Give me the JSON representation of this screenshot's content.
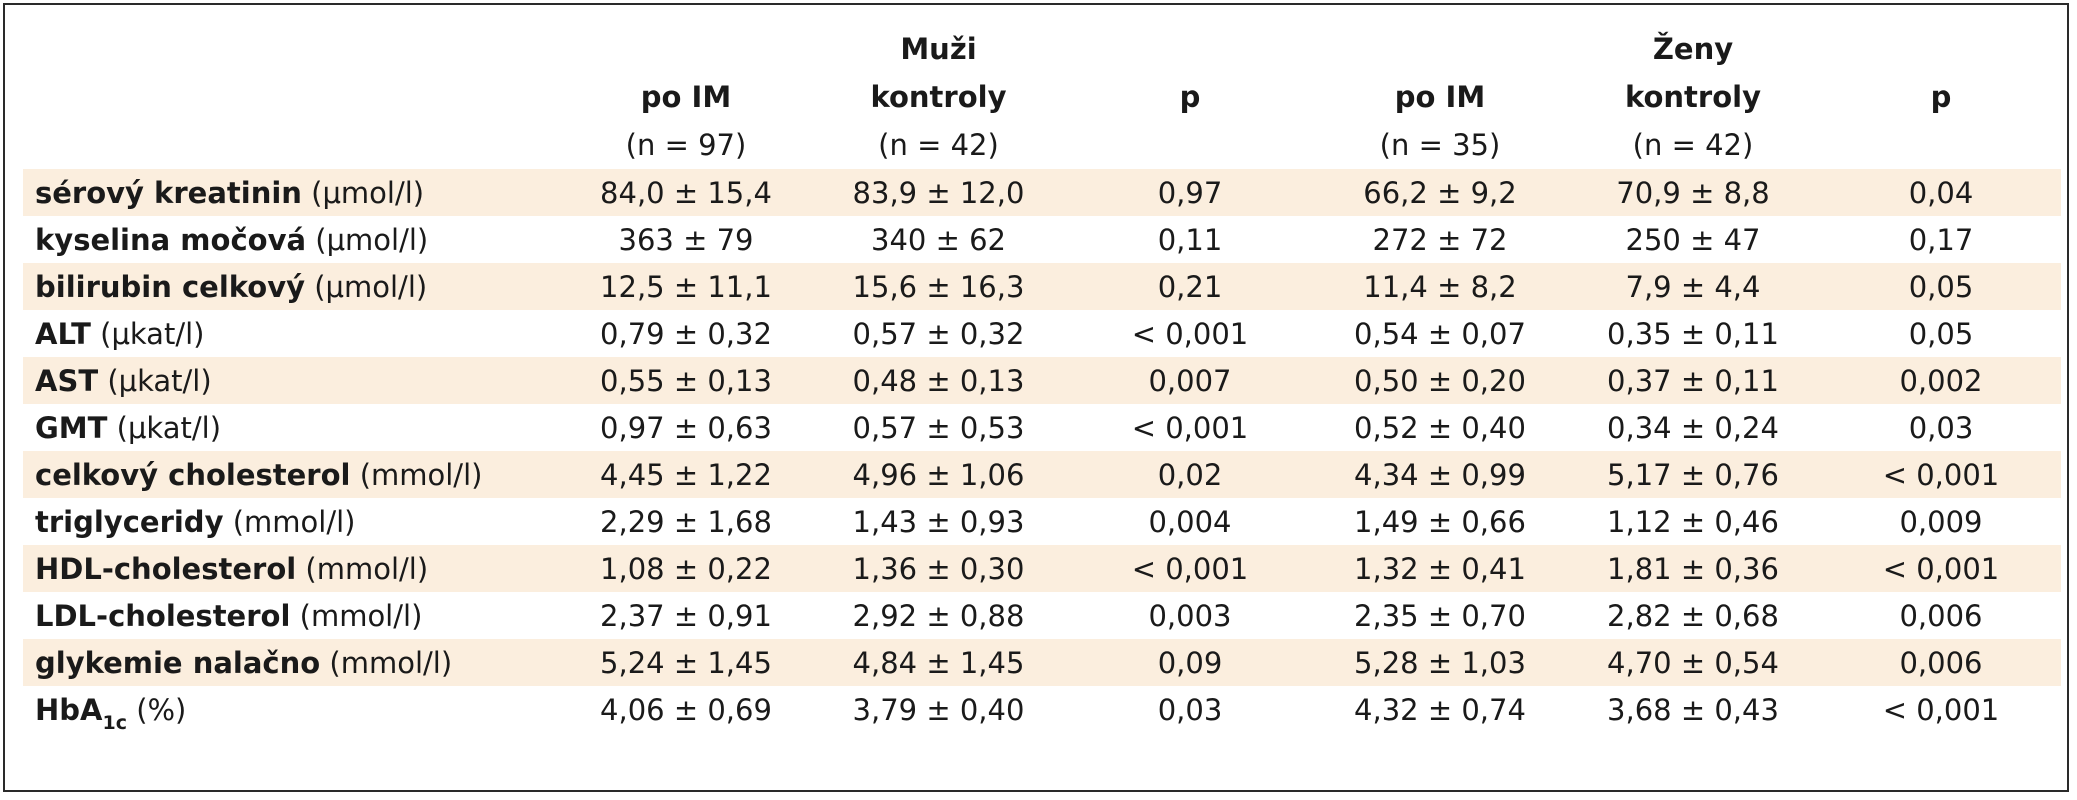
{
  "groups": {
    "men": "Muži",
    "women": "Ženy"
  },
  "columns": {
    "m_im": "po IM",
    "m_im_n": "(n = 97)",
    "m_ctrl": "kontroly",
    "m_ctrl_n": "(n = 42)",
    "m_p": "p",
    "w_im": "po IM",
    "w_im_n": "(n = 35)",
    "w_ctrl": "kontroly",
    "w_ctrl_n": "(n = 42)",
    "w_p": "p"
  },
  "rows": [
    {
      "name": "sérový kreatinin",
      "unit": "(μmol/l)",
      "v": [
        "84,0 ± 15,4",
        "83,9 ± 12,0",
        "0,97",
        "66,2 ± 9,2",
        "70,9 ± 8,8",
        "0,04"
      ]
    },
    {
      "name": "kyselina močová",
      "unit": "(μmol/l)",
      "v": [
        "363 ± 79",
        "340 ± 62",
        "0,11",
        "272 ± 72",
        "250 ± 47",
        "0,17"
      ]
    },
    {
      "name": "bilirubin celkový",
      "unit": "(μmol/l)",
      "v": [
        "12,5 ± 11,1",
        "15,6 ± 16,3",
        "0,21",
        "11,4 ± 8,2",
        "7,9 ± 4,4",
        "0,05"
      ]
    },
    {
      "name": "ALT",
      "unit": "(μkat/l)",
      "v": [
        "0,79 ± 0,32",
        "0,57 ± 0,32",
        "< 0,001",
        "0,54 ± 0,07",
        "0,35 ± 0,11",
        "0,05"
      ]
    },
    {
      "name": "AST",
      "unit": "(μkat/l)",
      "v": [
        "0,55 ± 0,13",
        "0,48 ± 0,13",
        "0,007",
        "0,50 ± 0,20",
        "0,37 ± 0,11",
        "0,002"
      ]
    },
    {
      "name": "GMT",
      "unit": "(μkat/l)",
      "v": [
        "0,97 ± 0,63",
        "0,57 ± 0,53",
        "< 0,001",
        "0,52 ± 0,40",
        "0,34 ± 0,24",
        "0,03"
      ]
    },
    {
      "name": "celkový cholesterol",
      "unit": "(mmol/l)",
      "v": [
        "4,45 ± 1,22",
        "4,96 ± 1,06",
        "0,02",
        "4,34 ± 0,99",
        "5,17 ± 0,76",
        "< 0,001"
      ]
    },
    {
      "name": "triglyceridy",
      "unit": "(mmol/l)",
      "v": [
        "2,29 ± 1,68",
        "1,43 ± 0,93",
        "0,004",
        "1,49 ± 0,66",
        "1,12 ± 0,46",
        "0,009"
      ]
    },
    {
      "name": "HDL-cholesterol",
      "unit": "(mmol/l)",
      "v": [
        "1,08 ± 0,22",
        "1,36 ± 0,30",
        "< 0,001",
        "1,32 ± 0,41",
        "1,81 ± 0,36",
        "< 0,001"
      ]
    },
    {
      "name": "LDL-cholesterol",
      "unit": "(mmol/l)",
      "v": [
        "2,37 ± 0,91",
        "2,92 ± 0,88",
        "0,003",
        "2,35 ± 0,70",
        "2,82 ± 0,68",
        "0,006"
      ]
    },
    {
      "name": "glykemie nalačno",
      "unit": "(mmol/l)",
      "v": [
        "5,24 ± 1,45",
        "4,84 ± 1,45",
        "0,09",
        "5,28 ± 1,03",
        "4,70 ± 0,54",
        "0,006"
      ]
    },
    {
      "name": "HbA",
      "name_sub": "1c",
      "unit": "(%)",
      "v": [
        "4,06 ± 0,69",
        "3,79 ± 0,40",
        "0,03",
        "4,32 ± 0,74",
        "3,68 ± 0,43",
        "< 0,001"
      ]
    }
  ],
  "colors": {
    "row_shade": "#fbeede",
    "border": "#2a2a2a",
    "text": "#1a1a1a"
  }
}
